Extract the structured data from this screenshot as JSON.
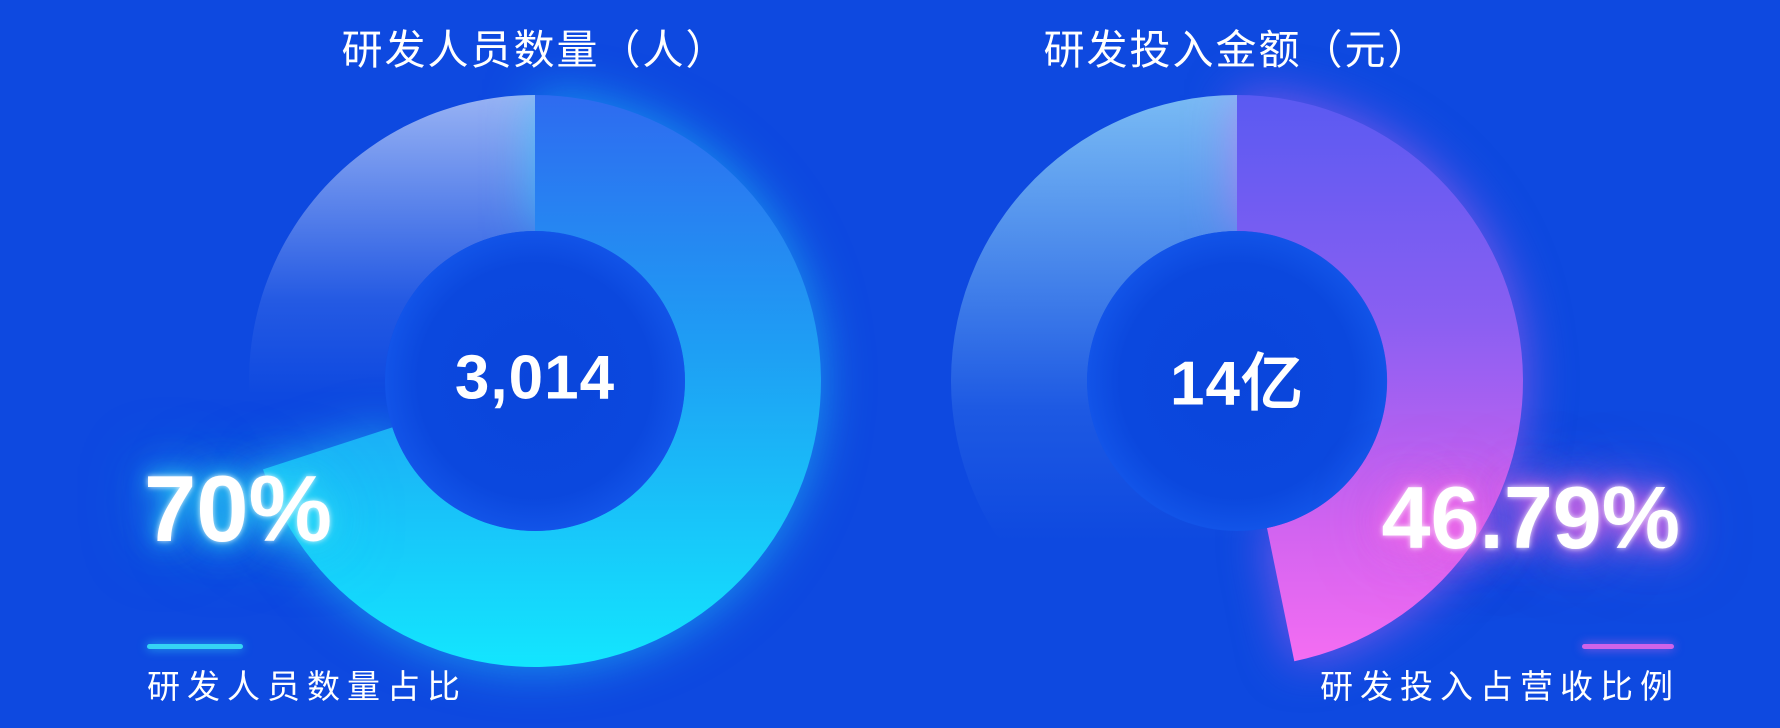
{
  "page": {
    "background_color": "#0e49e0",
    "text_color": "#ffffff"
  },
  "chart_data": [
    {
      "type": "pie",
      "variant": "donut",
      "title": "研发人员数量（人）",
      "center_value": "3,014",
      "percent_label": "70%",
      "caption": "研发人员数量占比",
      "series": [
        {
          "name": "研发人员数量占比",
          "value": 70
        },
        {
          "value": 30
        }
      ],
      "colors": {
        "accent": "#35d4f4",
        "glow": "rgba(36,220,252,0.55)",
        "arc_stops": [
          [
            0,
            "#2e6bf0"
          ],
          [
            0.45,
            "#1e9ff4"
          ],
          [
            1,
            "#13e6fe"
          ]
        ],
        "rest_stops": [
          [
            0,
            "rgba(230,238,255,0.64)"
          ],
          [
            0.55,
            "rgba(230,238,255,0.10)"
          ],
          [
            0.8,
            "rgba(230,238,255,0)"
          ]
        ]
      }
    },
    {
      "type": "pie",
      "variant": "donut",
      "title": "研发投入金额（元）",
      "center_value": "14亿",
      "percent_label": "46.79%",
      "caption": "研发投入占营收比例",
      "series": [
        {
          "name": "研发投入占营收比例",
          "value": 46.79
        },
        {
          "value": 53.21
        }
      ],
      "colors": {
        "accent": "#cf63e8",
        "glow": "rgba(240,100,244,0.5)",
        "arc_stops": [
          [
            0,
            "#5a5af2"
          ],
          [
            0.4,
            "#8a5ff2"
          ],
          [
            0.75,
            "#cf63f0"
          ],
          [
            1,
            "#f46df2"
          ]
        ],
        "rest_stops": [
          [
            0,
            "rgba(140,207,248,0.85)"
          ],
          [
            0.55,
            "rgba(140,207,248,0.12)"
          ],
          [
            0.78,
            "rgba(140,207,248,0)"
          ]
        ]
      }
    }
  ]
}
